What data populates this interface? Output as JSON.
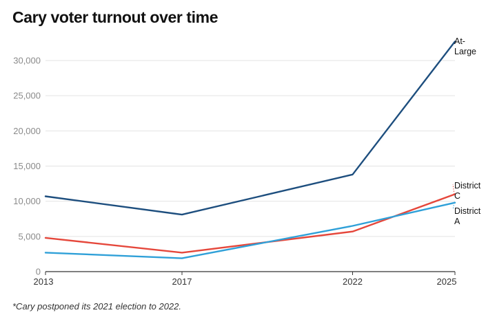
{
  "chart_data": {
    "type": "line",
    "title": "Cary voter turnout over time",
    "footnote": "*Cary postponed its 2021 election to 2022.",
    "xlabel": "",
    "ylabel": "",
    "x": [
      2013,
      2017,
      2022,
      2025
    ],
    "x_tick_labels": [
      "2013",
      "2017",
      "2022",
      "2025"
    ],
    "xlim": [
      2013,
      2025
    ],
    "ylim": [
      0,
      32000
    ],
    "y_ticks": [
      0,
      5000,
      10000,
      15000,
      20000,
      25000,
      30000
    ],
    "y_tick_labels": [
      "0",
      "5,000",
      "10,000",
      "15,000",
      "20,000",
      "25,000",
      "30,000"
    ],
    "grid": true,
    "legend": "inline labels at right end of each line",
    "series": [
      {
        "name": "At-Large",
        "label_lines": [
          "At-",
          "Large"
        ],
        "color": "#1d4e7e",
        "values": [
          10700,
          8100,
          13800,
          32700
        ]
      },
      {
        "name": "District C",
        "label_lines": [
          "District",
          "C"
        ],
        "color": "#e5473b",
        "values": [
          4800,
          2700,
          5700,
          11000
        ]
      },
      {
        "name": "District A",
        "label_lines": [
          "District",
          "A"
        ],
        "color": "#2fa0d8",
        "values": [
          2700,
          1900,
          6500,
          9800
        ]
      }
    ]
  }
}
